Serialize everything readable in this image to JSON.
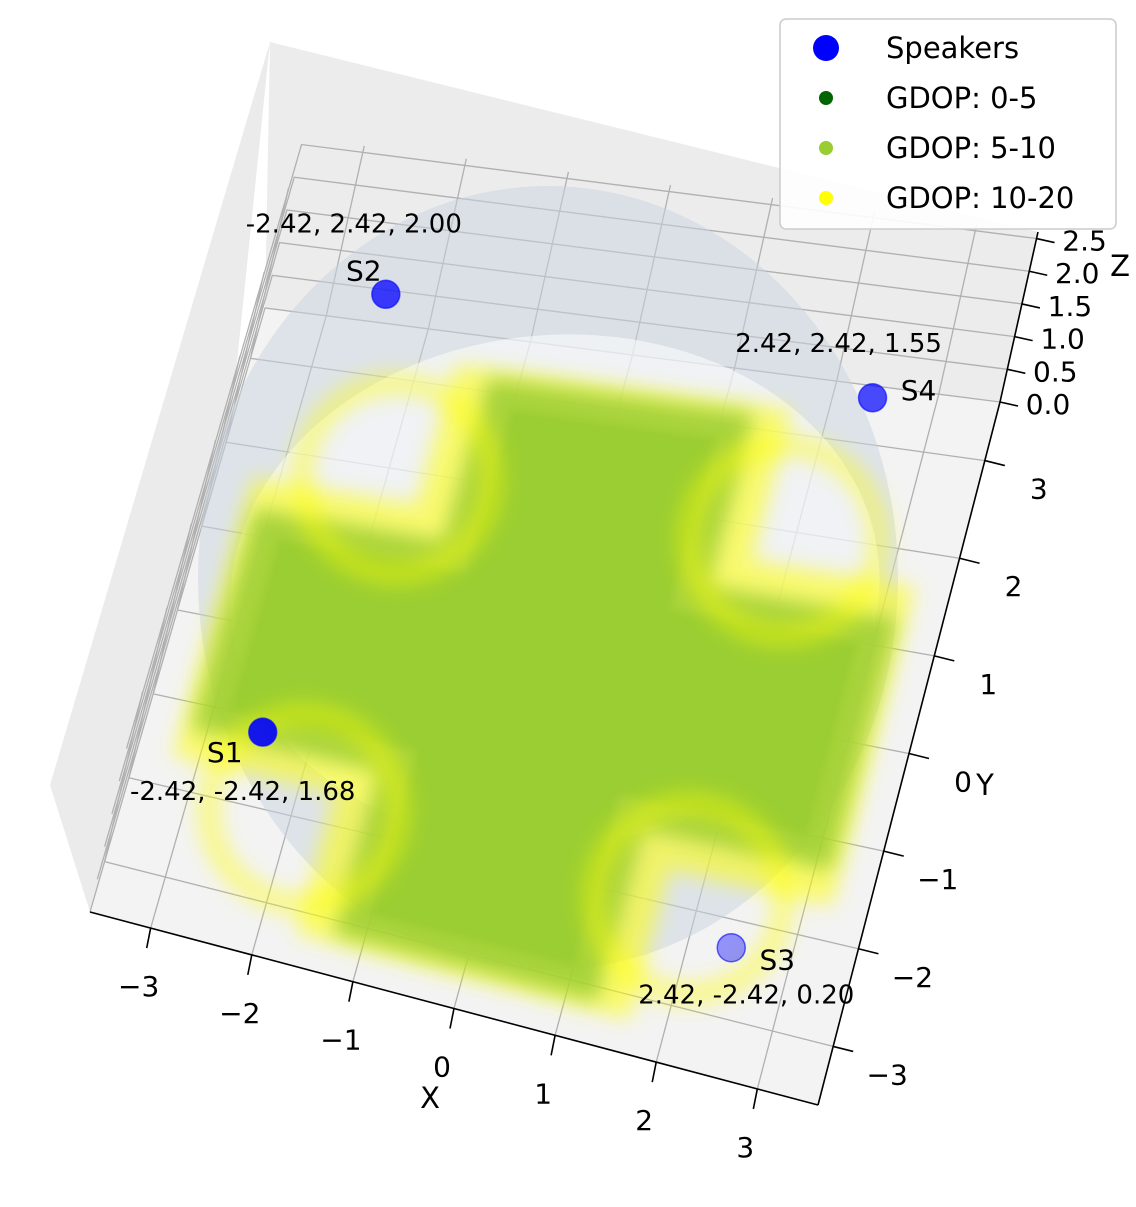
{
  "chart_data": {
    "type": "scatter",
    "projection": "3d",
    "title": "",
    "xlabel": "X",
    "ylabel": "Y",
    "zlabel": "Z",
    "x_ticks": [
      "−3",
      "−2",
      "−1",
      "0",
      "1",
      "2",
      "3"
    ],
    "y_ticks": [
      "−3",
      "−2",
      "−1",
      "0",
      "1",
      "2",
      "3"
    ],
    "z_ticks": [
      "0.0",
      "0.5",
      "1.0",
      "1.5",
      "2.0",
      "2.5"
    ],
    "xlim": [
      -3.6,
      3.6
    ],
    "ylim": [
      -3.6,
      3.6
    ],
    "zlim": [
      0,
      2.6
    ],
    "grid": true,
    "legend_position": "top-right",
    "legend": [
      {
        "label": "Speakers",
        "color": "#0000ff",
        "marker": "large"
      },
      {
        "label": "GDOP: 0-5",
        "color": "#006400",
        "marker": "small"
      },
      {
        "label": "GDOP: 5-10",
        "color": "#9acd32",
        "marker": "small"
      },
      {
        "label": "GDOP: 10-20",
        "color": "#ffff00",
        "marker": "small"
      }
    ],
    "speakers": [
      {
        "name": "S1",
        "x": -2.42,
        "y": -2.42,
        "z": 1.68,
        "label": "-2.42, -2.42, 1.68"
      },
      {
        "name": "S2",
        "x": -2.42,
        "y": 2.42,
        "z": 2.0,
        "label": "-2.42, 2.42, 2.00"
      },
      {
        "name": "S3",
        "x": 2.42,
        "y": -2.42,
        "z": 0.2,
        "label": "2.42, -2.42, 0.20"
      },
      {
        "name": "S4",
        "x": 2.42,
        "y": 2.42,
        "z": 1.55,
        "label": "2.42, 2.42, 1.55"
      }
    ],
    "gdop_region": {
      "shape": "cross",
      "center": [
        0,
        0
      ],
      "arm_half_width": 1.1,
      "extent": 3.2,
      "inner_class": "GDOP: 5-10",
      "outer_class": "GDOP: 10-20"
    },
    "colors": {
      "speaker": "#0000ff",
      "gdop_low": "#006400",
      "gdop_mid": "#9acd32",
      "gdop_high": "#ffff00",
      "sphere": "#c8d3e0",
      "pane": "#f2f2f2",
      "grid": "#b0b0b0"
    }
  }
}
